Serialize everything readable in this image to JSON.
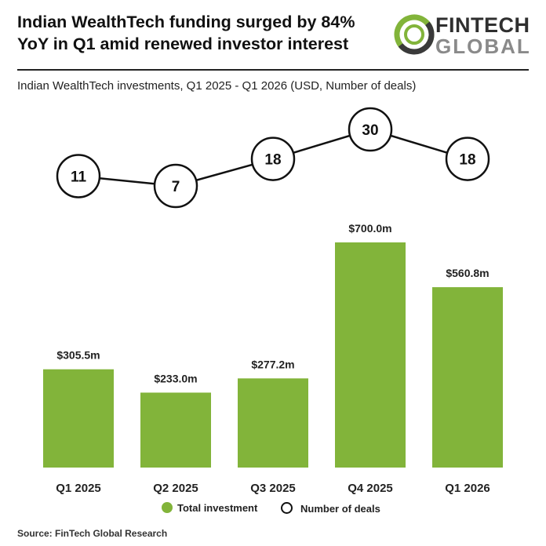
{
  "header": {
    "title_line1": "Indian WealthTech funding surged by 84%",
    "title_line2": "YoY in Q1 amid renewed investor interest",
    "logo_line1": "FINTECH",
    "logo_line2": "GLOBAL"
  },
  "chart_data": {
    "type": "bar",
    "subtitle": "Indian WealthTech investments, Q1 2025 - Q1 2026 (USD, Number of deals)",
    "categories": [
      "Q1 2025",
      "Q2 2025",
      "Q3 2025",
      "Q4 2025",
      "Q1 2026"
    ],
    "series": [
      {
        "name": "Total investment",
        "type": "bar",
        "values": [
          305.5,
          233.0,
          277.2,
          700.0,
          560.8
        ],
        "labels": [
          "$305.5m",
          "$233.0m",
          "$277.2m",
          "$700.0m",
          "$560.8m"
        ],
        "color": "#82b43a"
      },
      {
        "name": "Number of deals",
        "type": "line",
        "values": [
          11,
          7,
          18,
          30,
          18
        ],
        "labels": [
          "11",
          "7",
          "18",
          "30",
          "18"
        ],
        "color": "#111111"
      }
    ],
    "legend": "bottom"
  },
  "footer": {
    "source": "Source: FinTech Global Research"
  }
}
